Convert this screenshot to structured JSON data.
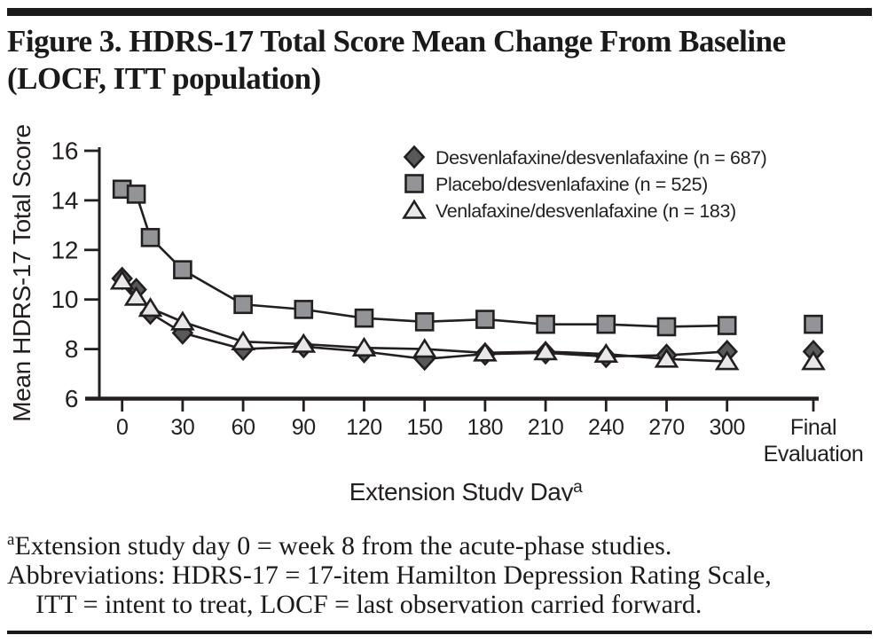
{
  "page": {
    "title_line1": "Figure 3. HDRS-17 Total Score Mean Change From Baseline",
    "title_line2": "(LOCF, ITT population)",
    "footnotes": {
      "marker": "a",
      "line1": "Extension study day 0 = week 8 from the acute-phase studies.",
      "line2": "Abbreviations: HDRS-17 = 17-item Hamilton Depression Rating Scale,",
      "line3": "ITT = intent to treat, LOCF = last observation carried forward."
    }
  },
  "chart_data": {
    "type": "line",
    "title": "",
    "xlabel": "Extension Study Day",
    "xlabel_superscript": "a",
    "ylabel": "Mean HDRS-17 Total Score",
    "ylim": [
      6,
      16
    ],
    "y_ticks": [
      6,
      8,
      10,
      12,
      14,
      16
    ],
    "x_ticks": [
      0,
      30,
      60,
      90,
      120,
      150,
      180,
      210,
      240,
      270,
      300
    ],
    "final_tick_lines": [
      "Final",
      "Evaluation"
    ],
    "grid": false,
    "legend_position": "top-right",
    "line_color": "#231f20",
    "x": [
      0,
      7,
      14,
      30,
      60,
      90,
      120,
      150,
      180,
      210,
      240,
      270,
      300
    ],
    "draw_order": [
      1,
      0,
      2
    ],
    "series": [
      {
        "key": "desvenlafaxine-desvenlafaxine",
        "name": "Desvenlafaxine/desvenlafaxine (n = 687)",
        "marker": "diamond",
        "fill": "#58595b",
        "values": [
          10.85,
          10.4,
          9.45,
          8.65,
          8.0,
          8.1,
          7.9,
          7.6,
          7.8,
          7.85,
          7.7,
          7.75,
          7.9
        ],
        "final_value": 7.9
      },
      {
        "key": "placebo-desvenlafaxine",
        "name": "Placebo/desvenlafaxine (n = 525)",
        "marker": "square",
        "fill": "#929497",
        "values": [
          14.45,
          14.25,
          12.5,
          11.2,
          9.8,
          9.6,
          9.25,
          9.1,
          9.2,
          9.0,
          9.0,
          8.9,
          8.95
        ],
        "final_value": 9.0
      },
      {
        "key": "venlafaxine-desvenlafaxine",
        "name": "Venlafaxine/desvenlafaxine (n = 183)",
        "marker": "triangle",
        "fill": "#e8e8e9",
        "values": [
          10.75,
          10.1,
          9.65,
          9.1,
          8.3,
          8.2,
          8.05,
          8.0,
          7.85,
          7.9,
          7.8,
          7.6,
          7.5
        ],
        "final_value": 7.5
      }
    ]
  }
}
